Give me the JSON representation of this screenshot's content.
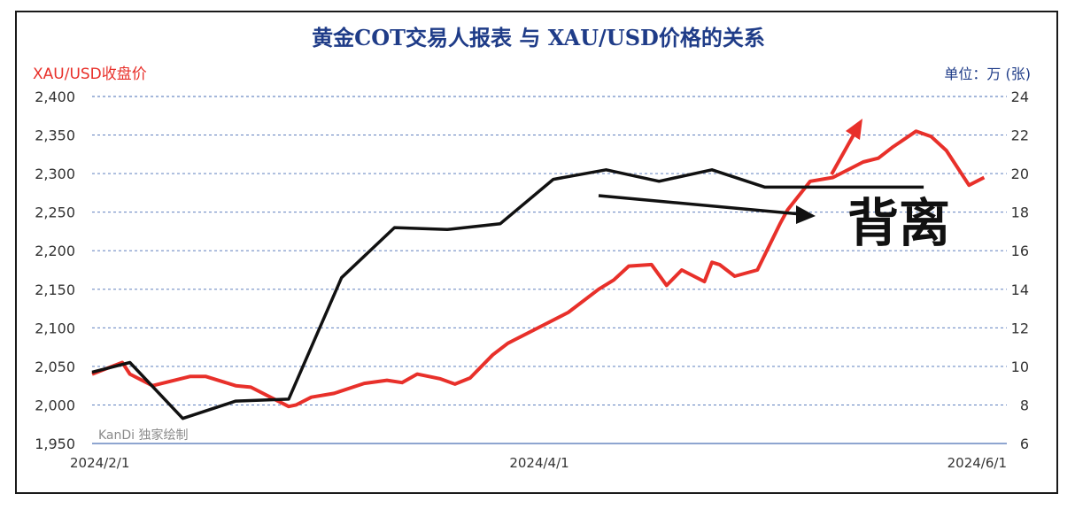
{
  "chart_data": {
    "type": "line",
    "title": "黄金COT交易人报表 与 XAU/USD价格的关系",
    "left_axis_label": "XAU/USD收盘价",
    "right_axis_label": "单位：万 (张)",
    "watermark": "KanDi 独家绘制",
    "annotation": "背离",
    "x_ticks": [
      "2024/2/1",
      "2024/4/1",
      "2024/6/1"
    ],
    "y_left": {
      "ticks": [
        "1,950",
        "2,000",
        "2,050",
        "2,100",
        "2,150",
        "2,200",
        "2,250",
        "2,300",
        "2,350",
        "2,400"
      ],
      "min": 1950,
      "max": 2400
    },
    "y_right": {
      "ticks": [
        "6",
        "8",
        "10",
        "12",
        "14",
        "16",
        "18",
        "20",
        "22",
        "24"
      ],
      "min": 6,
      "max": 24
    },
    "grid": true,
    "colors": {
      "price": "#e8302a",
      "cot": "#111111",
      "title": "#1f3c88",
      "grid": "#4a6fb5",
      "left_label": "#e8302a",
      "right_label": "#1f3c88"
    },
    "series": [
      {
        "axis": "left",
        "x": [
          "2024-02-01",
          "2024-02-05",
          "2024-02-06",
          "2024-02-09",
          "2024-02-14",
          "2024-02-16",
          "2024-02-20",
          "2024-02-22",
          "2024-02-27",
          "2024-02-28",
          "2024-03-01",
          "2024-03-04",
          "2024-03-08",
          "2024-03-11",
          "2024-03-13",
          "2024-03-15",
          "2024-03-18",
          "2024-03-20",
          "2024-03-22",
          "2024-03-25",
          "2024-03-27",
          "2024-03-28",
          "2024-04-01",
          "2024-04-04",
          "2024-04-08",
          "2024-04-10",
          "2024-04-12",
          "2024-04-15",
          "2024-04-17",
          "2024-04-19",
          "2024-04-22",
          "2024-04-23",
          "2024-04-24",
          "2024-04-26",
          "2024-04-29",
          "2024-04-30",
          "2024-05-02",
          "2024-05-03",
          "2024-05-06",
          "2024-05-09",
          "2024-05-10",
          "2024-05-13",
          "2024-05-15",
          "2024-05-17",
          "2024-05-20",
          "2024-05-22",
          "2024-05-24",
          "2024-05-27",
          "2024-05-29"
        ],
        "values": [
          2040,
          2055,
          2040,
          2025,
          2037,
          2037,
          2025,
          2023,
          1998,
          2000,
          2010,
          2015,
          2028,
          2032,
          2029,
          2040,
          2034,
          2027,
          2035,
          2065,
          2080,
          2085,
          2105,
          2120,
          2150,
          2162,
          2180,
          2182,
          2155,
          2175,
          2160,
          2185,
          2182,
          2167,
          2175,
          2195,
          2235,
          2253,
          2290,
          2295,
          2300,
          2315,
          2320,
          2335,
          2355,
          2348,
          2330,
          2285,
          2295
        ]
      },
      {
        "axis": "right",
        "x": [
          "2024-02-01",
          "2024-02-06",
          "2024-02-13",
          "2024-02-20",
          "2024-02-27",
          "2024-03-05",
          "2024-03-12",
          "2024-03-19",
          "2024-03-26",
          "2024-04-02",
          "2024-04-09",
          "2024-04-16",
          "2024-04-23",
          "2024-04-30",
          "2024-05-07",
          "2024-05-14",
          "2024-05-21"
        ],
        "values": [
          9.7,
          10.2,
          7.3,
          8.2,
          8.3,
          14.6,
          17.2,
          17.1,
          17.4,
          19.7,
          20.2,
          19.6,
          20.2,
          19.3,
          19.3,
          19.3,
          19.3
        ]
      }
    ]
  }
}
